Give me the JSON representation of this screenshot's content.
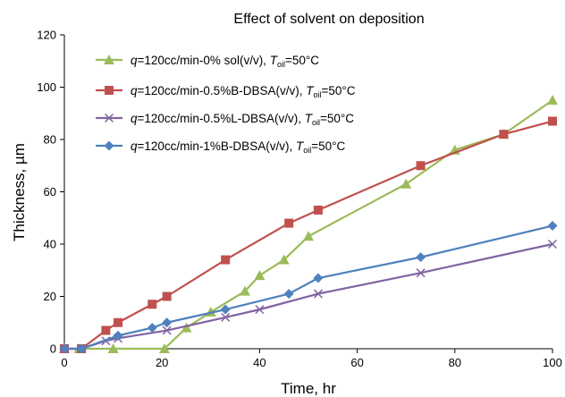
{
  "chart_data": {
    "type": "line",
    "title": "Effect of solvent on deposition",
    "xlabel": "Time, hr",
    "ylabel": "Thickness, µm",
    "xlim": [
      0,
      100
    ],
    "ylim": [
      0,
      120
    ],
    "xticks": [
      "0",
      "20",
      "40",
      "60",
      "80",
      "100"
    ],
    "yticks": [
      "0",
      "20",
      "40",
      "60",
      "80",
      "100",
      "120"
    ],
    "grid": false,
    "legend_position": "top-left",
    "series": [
      {
        "name": "q=120cc/min-0% sol(v/v), Toil=50°C",
        "legend_parts": [
          "q",
          "=120cc/min-0% sol(v/v), ",
          "T",
          "oil",
          "=50°C"
        ],
        "color": "#9BBB59",
        "marker": "triangle",
        "points": [
          [
            0,
            0
          ],
          [
            3,
            0
          ],
          [
            10,
            0
          ],
          [
            20.5,
            0
          ],
          [
            25,
            8
          ],
          [
            30,
            14
          ],
          [
            37,
            22
          ],
          [
            40,
            28
          ],
          [
            45,
            34
          ],
          [
            50,
            43
          ],
          [
            70,
            63
          ],
          [
            80,
            76
          ],
          [
            90,
            82
          ],
          [
            100,
            95
          ]
        ]
      },
      {
        "name": "q=120cc/min-0.5%B-DBSA(v/v), Toil=50°C",
        "legend_parts": [
          "q",
          "=120cc/min-0.5%B-DBSA(v/v), ",
          "T",
          "oil",
          "=50°C"
        ],
        "color": "#C0504D",
        "marker": "square",
        "points": [
          [
            0,
            0
          ],
          [
            3.5,
            0
          ],
          [
            8.5,
            7
          ],
          [
            11,
            10
          ],
          [
            18,
            17
          ],
          [
            21,
            20
          ],
          [
            33,
            34
          ],
          [
            46,
            48
          ],
          [
            52,
            53
          ],
          [
            73,
            70
          ],
          [
            90,
            82
          ],
          [
            100,
            87
          ]
        ]
      },
      {
        "name": "q=120cc/min-0.5%L-DBSA(v/v), Toil=50°C",
        "legend_parts": [
          "q",
          "=120cc/min-0.5%L-DBSA(v/v), ",
          "T",
          "oil",
          "=50°C"
        ],
        "color": "#8064A2",
        "marker": "x",
        "points": [
          [
            0,
            0
          ],
          [
            3.5,
            0
          ],
          [
            8.5,
            3
          ],
          [
            11,
            4
          ],
          [
            21,
            7
          ],
          [
            33,
            12
          ],
          [
            40,
            15
          ],
          [
            52,
            21
          ],
          [
            73,
            29
          ],
          [
            100,
            40
          ]
        ]
      },
      {
        "name": "q=120cc/min-1%B-DBSA(v/v), Toil=50°C",
        "legend_parts": [
          "q",
          "=120cc/min-1%B-DBSA(v/v), ",
          "T",
          "oil",
          "=50°C"
        ],
        "color": "#4F81BD",
        "marker": "diamond",
        "points": [
          [
            0,
            0
          ],
          [
            3.5,
            0
          ],
          [
            11,
            5
          ],
          [
            18,
            8
          ],
          [
            21,
            10
          ],
          [
            33,
            15
          ],
          [
            46,
            21
          ],
          [
            52,
            27
          ],
          [
            73,
            35
          ],
          [
            100,
            47
          ]
        ]
      }
    ]
  }
}
